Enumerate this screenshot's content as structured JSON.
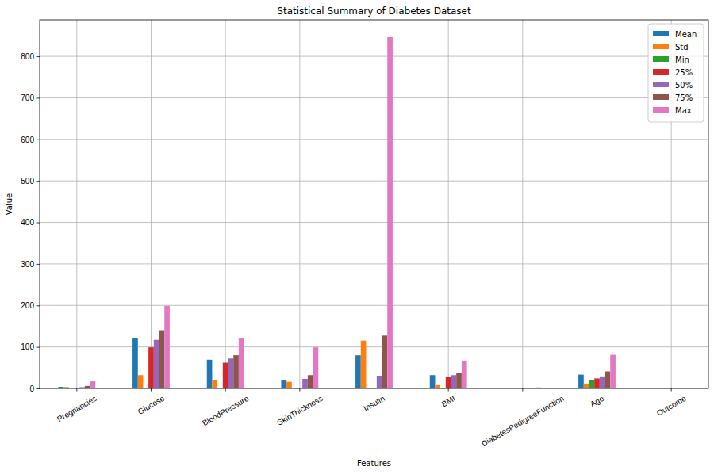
{
  "chart_data": {
    "type": "bar",
    "title": "Statistical Summary of Diabetes Dataset",
    "x_label": "Features",
    "y_label": "Value",
    "categories": [
      "Pregnancies",
      "Glucose",
      "BloodPressure",
      "SkinThickness",
      "Insulin",
      "BMI",
      "DiabetesPedigreeFunction",
      "Age",
      "Outcome"
    ],
    "series": [
      {
        "name": "Mean",
        "color": "#1f77b4",
        "values": [
          3.85,
          120.9,
          69.1,
          20.5,
          79.8,
          32.0,
          0.47,
          33.2,
          0.35
        ]
      },
      {
        "name": "Std",
        "color": "#ff7f0e",
        "values": [
          3.37,
          32.0,
          19.4,
          16.0,
          115.2,
          7.9,
          0.33,
          11.8,
          0.48
        ]
      },
      {
        "name": "Min",
        "color": "#2ca02c",
        "values": [
          0,
          0,
          0,
          0,
          0,
          0,
          0.08,
          21,
          0
        ]
      },
      {
        "name": "25%",
        "color": "#d62728",
        "values": [
          1,
          99,
          62,
          0,
          0,
          27.3,
          0.24,
          24,
          0
        ]
      },
      {
        "name": "50%",
        "color": "#9467bd",
        "values": [
          3,
          117,
          72,
          23,
          30.5,
          32.0,
          0.37,
          29,
          0
        ]
      },
      {
        "name": "75%",
        "color": "#8c564b",
        "values": [
          6,
          140.3,
          80,
          32,
          127.3,
          36.6,
          0.63,
          41,
          1
        ]
      },
      {
        "name": "Max",
        "color": "#e377c2",
        "values": [
          17,
          199,
          122,
          99,
          846,
          67.1,
          2.42,
          81,
          1
        ]
      }
    ],
    "ylim": [
      0,
      888
    ],
    "yticks": [
      0,
      100,
      200,
      300,
      400,
      500,
      600,
      700,
      800
    ],
    "grid": true,
    "legend": "upper right"
  }
}
